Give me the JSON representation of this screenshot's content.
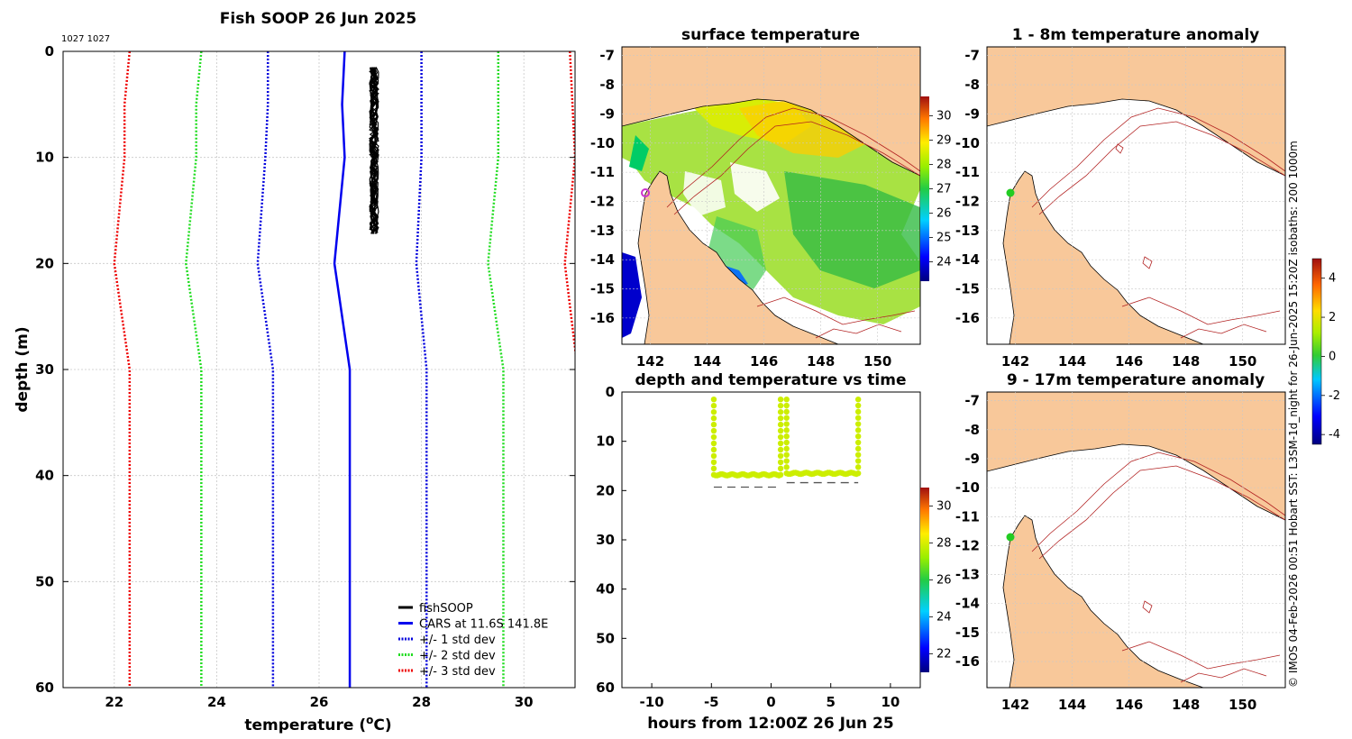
{
  "colors": {
    "land": "#f8c89a",
    "grid": "#c8c8c8",
    "isobath": "#b22222",
    "coast": "#000000",
    "fishsoop": "#000000",
    "cars": "#0000ee",
    "std1": "#0000dd",
    "std2": "#22dd22",
    "std3": "#ee0000",
    "dot": "#ccee00",
    "station": "#22cc22",
    "marker": "#cc33cc"
  },
  "figure": {
    "credit": "© IMOS 04-Feb-2026 00:51 Hobart SST: L3SM-1d_night for 26-Jun-2025 15:20Z isobaths: 200  1000m"
  },
  "profile": {
    "title": "Fish SOOP 26 Jun 2025",
    "ids": "1027 1027",
    "xlabel": "temperature (°C)",
    "xlabel_main": "temperature (",
    "xlabel_unit": "o",
    "xlabel_tail": "C)",
    "ylabel": "depth (m)",
    "xlim": [
      21,
      31
    ],
    "ylim": [
      0,
      60
    ],
    "xticks": [
      22,
      24,
      26,
      28,
      30
    ],
    "yticks": [
      0,
      10,
      20,
      30,
      40,
      50,
      60
    ],
    "legend": [
      {
        "label": "fishSOOP",
        "color": "#000000",
        "style": "solid"
      },
      {
        "label": "CARS at 11.6S 141.8E",
        "color": "#0000ee",
        "style": "solid"
      },
      {
        "label": "+/- 1 std dev",
        "color": "#0000dd",
        "style": "dotted"
      },
      {
        "label": "+/- 2 std dev",
        "color": "#22dd22",
        "style": "dotted"
      },
      {
        "label": "+/- 3 std dev",
        "color": "#ee0000",
        "style": "dotted"
      }
    ]
  },
  "sst_map": {
    "title": "surface temperature",
    "xticks": [
      142,
      144,
      146,
      148,
      150
    ],
    "yticks": [
      -7,
      -8,
      -9,
      -10,
      -11,
      -12,
      -13,
      -14,
      -15,
      -16
    ],
    "colorbar_ticks": [
      30,
      29,
      28,
      27,
      26,
      25,
      24
    ]
  },
  "anom_top": {
    "title": "1 - 8m temperature anomaly",
    "xticks": [
      142,
      144,
      146,
      148,
      150
    ],
    "yticks": [
      -7,
      -8,
      -9,
      -10,
      -11,
      -12,
      -13,
      -14,
      -15,
      -16
    ],
    "colorbar_ticks": [
      4,
      2,
      0,
      -2,
      -4
    ]
  },
  "anom_bottom": {
    "title": "9 - 17m temperature anomaly",
    "xticks": [
      142,
      144,
      146,
      148,
      150
    ],
    "yticks": [
      -7,
      -8,
      -9,
      -10,
      -11,
      -12,
      -13,
      -14,
      -15,
      -16
    ]
  },
  "timeseries": {
    "title": "depth and temperature vs time",
    "xlabel": "hours from 12:00Z 26 Jun 25",
    "xlim": [
      -12.5,
      12.5
    ],
    "ylim": [
      0,
      60
    ],
    "xticks": [
      -10,
      -5,
      0,
      5,
      10
    ],
    "yticks": [
      0,
      10,
      20,
      30,
      40,
      50,
      60
    ],
    "colorbar_ticks": [
      30,
      28,
      26,
      24,
      22
    ]
  },
  "chart_data": [
    {
      "type": "line",
      "title": "Fish SOOP 26 Jun 2025",
      "xlabel": "temperature (°C)",
      "ylabel": "depth (m)",
      "xlim": [
        21,
        31
      ],
      "ylim": [
        0,
        60
      ],
      "y_reversed": true,
      "grid": true,
      "legend_position": "bottom-right",
      "series": [
        {
          "name": "CARS at 11.6S 141.8E",
          "depth": [
            0,
            5,
            10,
            20,
            30,
            60
          ],
          "temp": [
            26.5,
            26.45,
            26.5,
            26.3,
            26.6,
            26.6
          ]
        },
        {
          "name": "+1 std dev",
          "depth": [
            0,
            5,
            10,
            20,
            30,
            60
          ],
          "temp": [
            28.0,
            28.0,
            28.0,
            27.9,
            28.1,
            28.1
          ]
        },
        {
          "name": "-1 std dev",
          "depth": [
            0,
            5,
            10,
            20,
            30,
            60
          ],
          "temp": [
            25.0,
            25.0,
            24.95,
            24.8,
            25.1,
            25.1
          ]
        },
        {
          "name": "+2 std dev",
          "depth": [
            0,
            5,
            10,
            20,
            30,
            60
          ],
          "temp": [
            29.5,
            29.5,
            29.5,
            29.3,
            29.6,
            29.6
          ]
        },
        {
          "name": "-2 std dev",
          "depth": [
            0,
            5,
            10,
            20,
            30,
            60
          ],
          "temp": [
            23.7,
            23.6,
            23.6,
            23.4,
            23.7,
            23.7
          ]
        },
        {
          "name": "+3 std dev",
          "depth": [
            0,
            5,
            10,
            20,
            30,
            60
          ],
          "temp": [
            30.9,
            30.95,
            31.0,
            30.8,
            31.05,
            31.05
          ]
        },
        {
          "name": "-3 std dev",
          "depth": [
            0,
            5,
            10,
            20,
            30,
            60
          ],
          "temp": [
            22.3,
            22.2,
            22.2,
            22.0,
            22.3,
            22.3
          ]
        },
        {
          "name": "fishSOOP",
          "temp_range": [
            26.95,
            27.2
          ],
          "depth_range": [
            1.5,
            17.2
          ]
        }
      ]
    },
    {
      "type": "scatter",
      "title": "depth and temperature vs time",
      "xlabel": "hours from 12:00Z 26 Jun 25",
      "ylabel": "",
      "xlim": [
        -12.5,
        12.5
      ],
      "ylim": [
        0,
        60
      ],
      "y_reversed": true,
      "colorbar_range": [
        21,
        31
      ],
      "cast1": {
        "hours": [
          -4.8,
          0.8
        ],
        "depth_plateau": 16.8,
        "surface": 1.5
      },
      "cast2": {
        "hours": [
          1.3,
          7.3
        ],
        "depth_plateau": 16.5,
        "surface": 1.5
      },
      "bottom_depth_dashes": [
        {
          "hours": [
            -4.8,
            0.8
          ],
          "depth": 19.3
        },
        {
          "hours": [
            1.3,
            7.3
          ],
          "depth": 18.4
        }
      ]
    },
    {
      "type": "heatmap",
      "title": "surface temperature",
      "xlim": [
        141,
        151.5
      ],
      "ylim": [
        -16.9,
        -6.7
      ],
      "colorbar_range": [
        23.2,
        30.8
      ]
    },
    {
      "type": "heatmap",
      "title": "1 - 8m temperature anomaly",
      "xlim": [
        141,
        151.5
      ],
      "ylim": [
        -16.9,
        -6.7
      ],
      "colorbar_range": [
        -4.5,
        5
      ]
    },
    {
      "type": "heatmap",
      "title": "9 - 17m temperature anomaly",
      "xlim": [
        141,
        151.5
      ],
      "ylim": [
        -16.9,
        -6.7
      ]
    }
  ]
}
